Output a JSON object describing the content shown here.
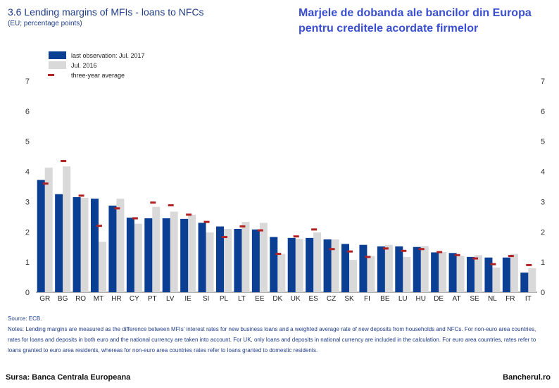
{
  "header": {
    "title": "3.6 Lending margins of MFIs - loans to NFCs",
    "subtitle": "(EU; percentage points)",
    "overlay_line1": "Marjele de dobanda ale bancilor din Europa",
    "overlay_line2": "pentru creditele acordate firmelor"
  },
  "colors": {
    "last_observation": "#0b3f94",
    "jul_2016": "#d9d9d9",
    "three_year_average": "#b22222",
    "text_blue": "#1f3c88"
  },
  "chart_data": {
    "type": "bar",
    "categories": [
      "GR",
      "BG",
      "RO",
      "MT",
      "HR",
      "CY",
      "PT",
      "LV",
      "IE",
      "SI",
      "PL",
      "LT",
      "EE",
      "DK",
      "UK",
      "ES",
      "CZ",
      "SK",
      "FI",
      "BE",
      "LU",
      "HU",
      "DE",
      "AT",
      "SE",
      "NL",
      "FR",
      "IT"
    ],
    "series": [
      {
        "name": "last observation: Jul. 2017",
        "type": "bar",
        "values": [
          3.72,
          3.25,
          3.15,
          3.1,
          2.87,
          2.47,
          2.45,
          2.45,
          2.43,
          2.3,
          2.18,
          2.1,
          2.08,
          1.83,
          1.8,
          1.8,
          1.75,
          1.6,
          1.57,
          1.52,
          1.52,
          1.5,
          1.32,
          1.3,
          1.17,
          1.15,
          1.15,
          0.65
        ]
      },
      {
        "name": "Jul. 2016",
        "type": "bar",
        "values": [
          4.13,
          4.17,
          3.13,
          1.67,
          3.1,
          2.27,
          2.83,
          2.67,
          2.57,
          1.98,
          2.1,
          2.33,
          2.3,
          1.27,
          1.77,
          1.98,
          1.75,
          1.07,
          1.2,
          1.57,
          1.17,
          1.53,
          1.33,
          1.2,
          1.23,
          0.82,
          1.27,
          0.8
        ]
      },
      {
        "name": "three-year average",
        "type": "marker",
        "values": [
          3.6,
          4.35,
          3.2,
          2.2,
          2.78,
          2.45,
          2.97,
          2.88,
          2.57,
          2.33,
          1.83,
          2.18,
          2.05,
          1.27,
          1.85,
          2.08,
          1.43,
          1.35,
          1.17,
          1.45,
          1.37,
          1.43,
          1.33,
          1.23,
          1.12,
          0.93,
          1.2,
          0.9
        ]
      }
    ],
    "ylim": [
      0,
      7
    ],
    "yticks": [
      0,
      1,
      2,
      3,
      4,
      5,
      6,
      7
    ],
    "grid": false,
    "legend": "top-left"
  },
  "notes": {
    "source": "Source: ECB.",
    "text": "Notes: Lending margins are measured as the difference between MFIs' interest rates for new business loans and a weighted average rate of new deposits from households and NFCs. For non-euro area countries, rates for loans and deposits in both euro and the national currency are taken into account. For UK, only loans and deposits in national currency are included in the calculation. For euro area countries, rates refer to loans granted to euro area residents, whereas for non-euro area countries rates refer to loans granted to domestic residents."
  },
  "footer": {
    "source_label": "Sursa: Banca Centrala Europeana",
    "brand": "Bancherul.ro"
  }
}
